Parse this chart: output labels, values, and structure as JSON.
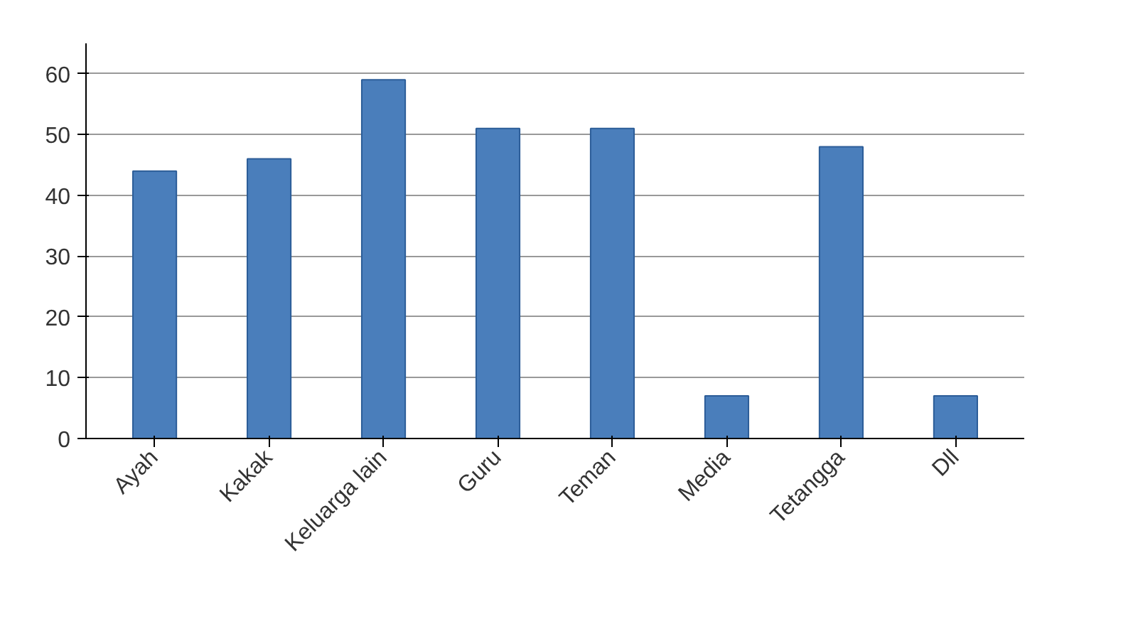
{
  "chart_data": {
    "type": "bar",
    "categories": [
      "Ayah",
      "Kakak",
      "Keluarga lain",
      "Guru",
      "Teman",
      "Media",
      "Tetangga",
      "Dll"
    ],
    "values": [
      44,
      46,
      59,
      51,
      51,
      7,
      48,
      7
    ],
    "color": "#4a7ebb",
    "ylim": [
      0,
      65
    ],
    "yticks": [
      0,
      10,
      20,
      30,
      40,
      50,
      60
    ],
    "grid": "y"
  }
}
